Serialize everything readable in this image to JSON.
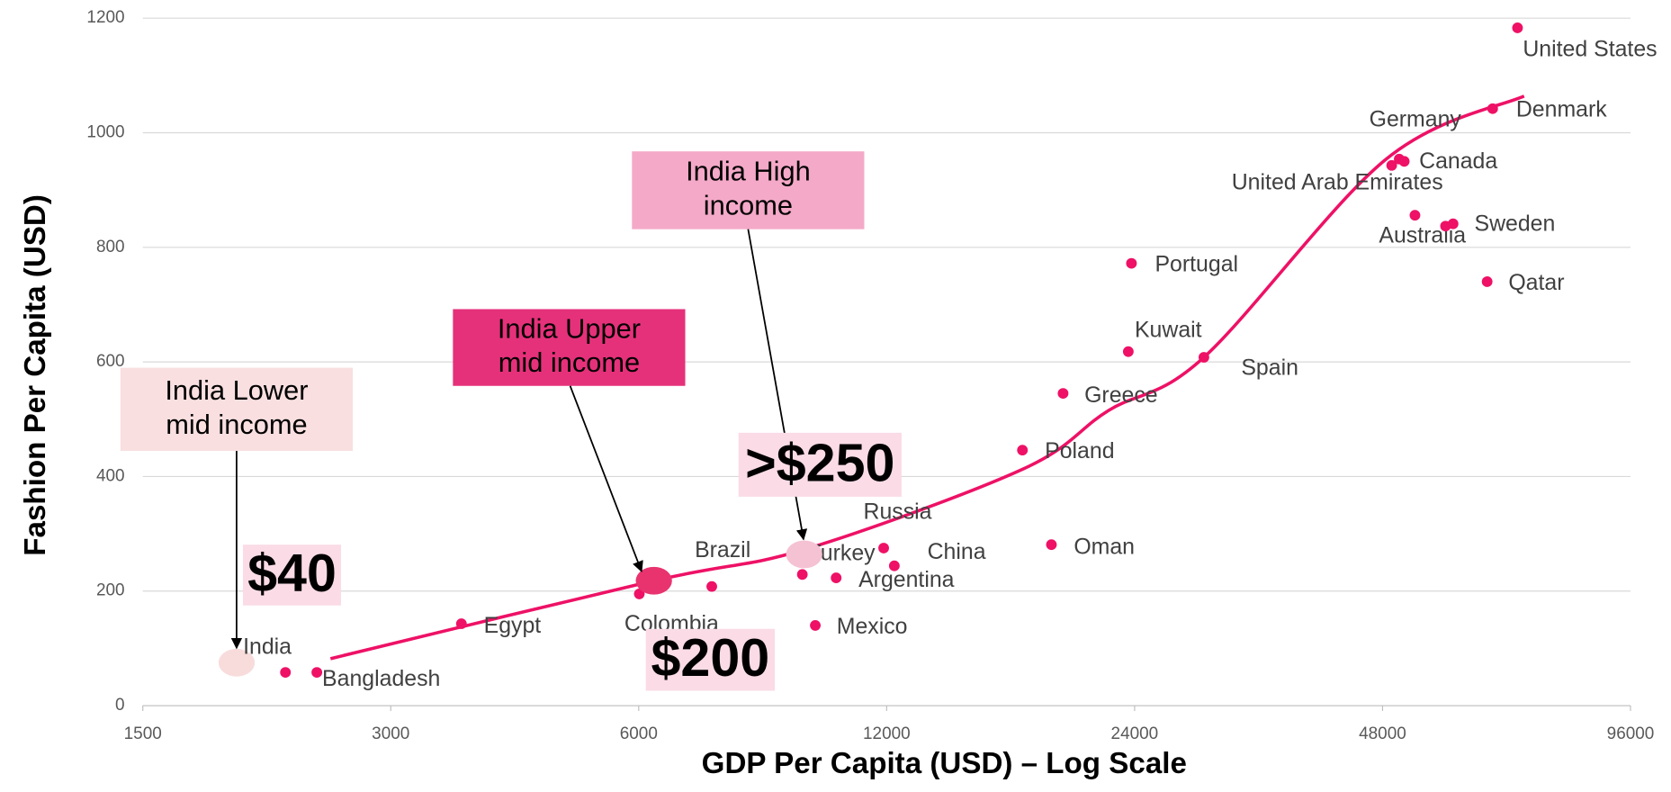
{
  "chart_data": {
    "type": "scatter",
    "xlabel": "GDP Per Capita (USD) – Log Scale",
    "ylabel": "Fashion Per Capita (USD)",
    "xlog": true,
    "xlim": [
      1500,
      96000
    ],
    "xticks": [
      1500,
      3000,
      6000,
      12000,
      24000,
      48000,
      96000
    ],
    "ylim": [
      0,
      1200
    ],
    "yticks": [
      0,
      200,
      400,
      600,
      800,
      1000,
      1200
    ],
    "grid": true,
    "series": [
      {
        "color": "#ee1166",
        "labels": [
          null,
          "Bangladesh",
          "Egypt",
          "Colombia",
          "Brazil",
          "Turkey",
          "Mexico",
          "Argentina",
          "Russia",
          "China",
          "Poland",
          "Oman",
          "Greece",
          "Kuwait",
          "Portugal",
          "Spain",
          "United Arab Emirates",
          "Germany",
          "Canada",
          "Australia",
          null,
          "Sweden",
          "Qatar",
          "Denmark",
          "United States"
        ],
        "x": [
          2235,
          2440,
          3655,
          6010,
          7360,
          9480,
          9830,
          10420,
          11900,
          12260,
          17540,
          19020,
          19650,
          23580,
          23790,
          29130,
          49240,
          50290,
          51000,
          52550,
          57240,
          58460,
          64300,
          65300,
          70000
        ],
        "values": [
          58,
          58,
          143,
          195,
          208,
          229,
          140,
          223,
          275,
          244,
          446,
          281,
          545,
          618,
          772,
          608,
          943,
          954,
          950,
          856,
          837,
          841,
          740,
          1042,
          1183
        ]
      },
      {
        "labels": [
          "India",
          null,
          null
        ],
        "colors": [
          "#f8dcdc",
          "#e8336f",
          "#f5c2d3"
        ],
        "x": [
          1950,
          6260,
          9530
        ],
        "values": [
          75,
          218,
          264
        ]
      }
    ],
    "trend": {
      "color": "#ee1166",
      "x": [
        2535,
        6260,
        9560,
        17570,
        22300,
        29130,
        48400,
        71300
      ],
      "values": [
        82,
        218,
        273,
        413,
        515,
        608,
        953,
        1064
      ]
    },
    "annotations": [
      {
        "lines": [
          "India Lower",
          "mid income"
        ],
        "color": "#f9dfe0"
      },
      {
        "lines": [
          "India Upper",
          "mid income"
        ],
        "color": "#e5317a"
      },
      {
        "lines": [
          "India High",
          "income"
        ],
        "color": "#f4a9c8"
      }
    ],
    "price_labels": [
      {
        "text": "$40",
        "color": "#fadbe6"
      },
      {
        "text": "$200",
        "color": "#fadbe6"
      },
      {
        "text": ">$250",
        "color": "#fadbe6"
      }
    ]
  }
}
